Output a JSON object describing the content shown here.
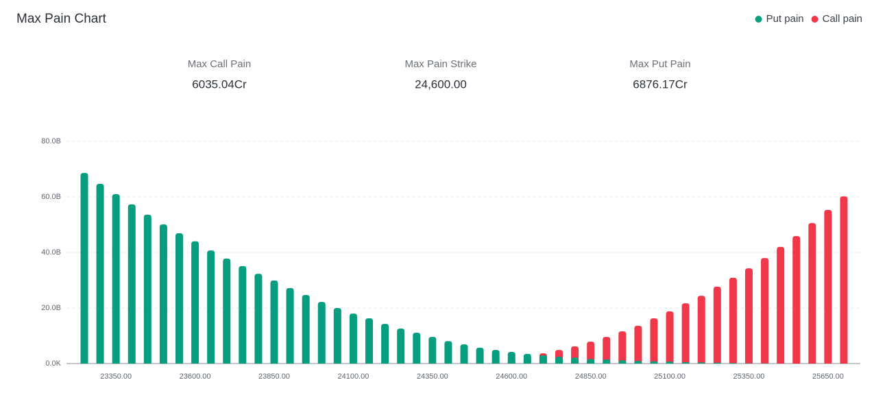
{
  "chart_data": {
    "type": "bar",
    "title": "Max Pain Chart",
    "stats": [
      {
        "label": "Max Call Pain",
        "value": "6035.04Cr"
      },
      {
        "label": "Max Pain Strike",
        "value": "24,600.00"
      },
      {
        "label": "Max Put Pain",
        "value": "6876.17Cr"
      }
    ],
    "categories": [
      null,
      null,
      "23350.00",
      null,
      null,
      null,
      null,
      "23600.00",
      null,
      null,
      null,
      null,
      "23850.00",
      null,
      null,
      null,
      null,
      "24100.00",
      null,
      null,
      null,
      null,
      "24350.00",
      null,
      null,
      null,
      null,
      "24600.00",
      null,
      null,
      null,
      null,
      "24850.00",
      null,
      null,
      null,
      null,
      "25100.00",
      null,
      null,
      null,
      null,
      "25350.00",
      null,
      null,
      null,
      null,
      "25650.00",
      null
    ],
    "series": [
      {
        "name": "Put pain",
        "color": "#069e7f",
        "values": [
          68.6,
          64.7,
          61.0,
          57.3,
          53.6,
          50.1,
          46.9,
          44.0,
          40.7,
          37.8,
          35.1,
          32.3,
          29.9,
          27.2,
          24.7,
          22.2,
          20.0,
          18.0,
          16.3,
          14.3,
          12.6,
          11.1,
          9.6,
          8.1,
          6.9,
          5.7,
          4.9,
          4.2,
          3.5,
          3.0,
          2.5,
          2.2,
          1.7,
          1.5,
          1.2,
          1.0,
          0.8,
          0.7,
          0.5,
          0.4,
          0.3,
          0.2,
          0.1,
          0.1,
          0,
          0,
          0,
          0,
          0
        ]
      },
      {
        "name": "Call pain",
        "color": "#f1374a",
        "values": [
          0,
          0,
          0,
          0,
          0,
          0,
          0,
          0,
          0,
          0,
          0,
          0,
          0,
          0,
          0,
          0,
          0,
          0,
          0,
          0,
          0,
          0,
          0.1,
          0.3,
          0.5,
          0.8,
          1.2,
          1.7,
          2.4,
          3.7,
          4.9,
          6.2,
          7.9,
          9.6,
          11.6,
          13.6,
          16.3,
          18.8,
          21.7,
          24.4,
          27.7,
          30.9,
          34.3,
          38.0,
          42.0,
          45.9,
          50.6,
          55.3,
          60.2
        ]
      }
    ],
    "ylim": [
      0,
      80
    ],
    "yticks": [
      {
        "value": 0,
        "label": "0.0K"
      },
      {
        "value": 20,
        "label": "20.0B"
      },
      {
        "value": 40,
        "label": "40.0B"
      },
      {
        "value": 60,
        "label": "60.0B"
      },
      {
        "value": 80,
        "label": "80.0B"
      }
    ],
    "grid": true,
    "legend": "top-right"
  }
}
